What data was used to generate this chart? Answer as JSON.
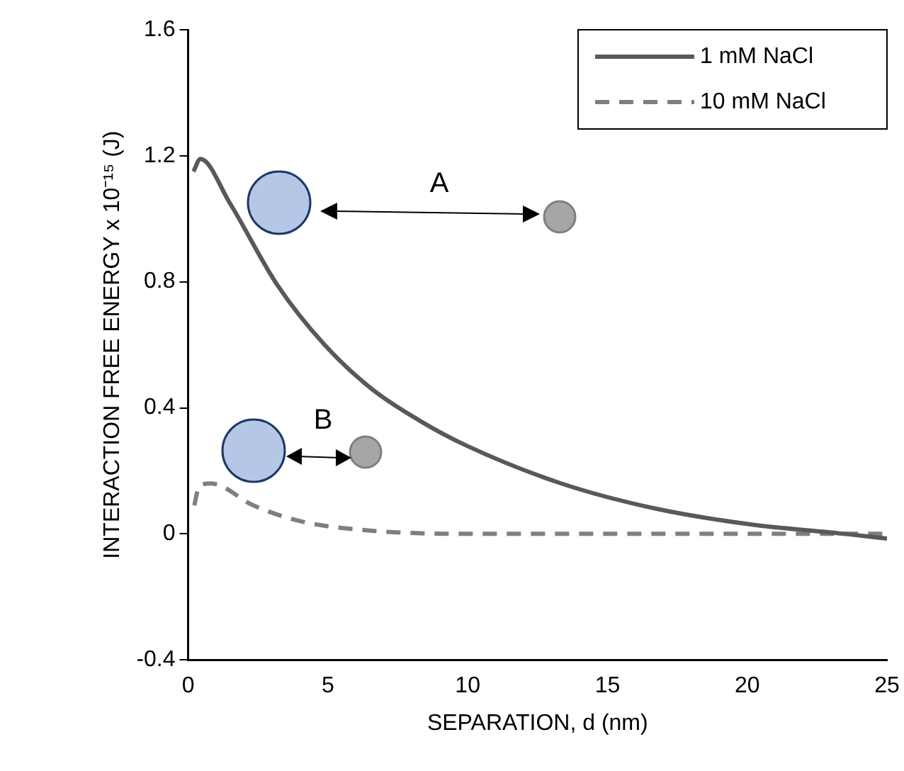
{
  "chart_data": {
    "type": "line",
    "xlabel": "SEPARATION, d (nm)",
    "ylabel": "INTERACTION FREE ENERGY x 10⁻¹⁵ (J)",
    "xlim": [
      0,
      25
    ],
    "xticks": [
      0,
      5,
      10,
      15,
      20,
      25
    ],
    "ylim": [
      -0.4,
      1.6
    ],
    "yticks": [
      -0.4,
      0,
      0.4,
      0.8,
      1.2,
      1.6
    ],
    "grid": false,
    "legend": "top right",
    "marker": "none",
    "series": [
      {
        "name": "1 mM NaCl",
        "color": "#595959",
        "line_style": "solid",
        "x": [
          0.19,
          0.44,
          1.49,
          3.19,
          4.88,
          6.57,
          8.27,
          9.96,
          13.35,
          16.73,
          20.12,
          23.5,
          25
        ],
        "values": [
          1.15,
          1.19,
          1.05,
          0.79,
          0.6,
          0.46,
          0.36,
          0.28,
          0.16,
          0.08,
          0.03,
          0,
          -0.015
        ]
      },
      {
        "name": "10 mM NaCl",
        "color": "#7f7f7f",
        "line_style": "dashed",
        "x": [
          0.22,
          0.39,
          0.81,
          2.34,
          4.03,
          6.57,
          9.96,
          15,
          20,
          25
        ],
        "values": [
          0.09,
          0.15,
          0.16,
          0.09,
          0.04,
          0.01,
          0,
          0,
          0,
          0
        ]
      }
    ],
    "annotations": [
      "A",
      "B"
    ]
  }
}
